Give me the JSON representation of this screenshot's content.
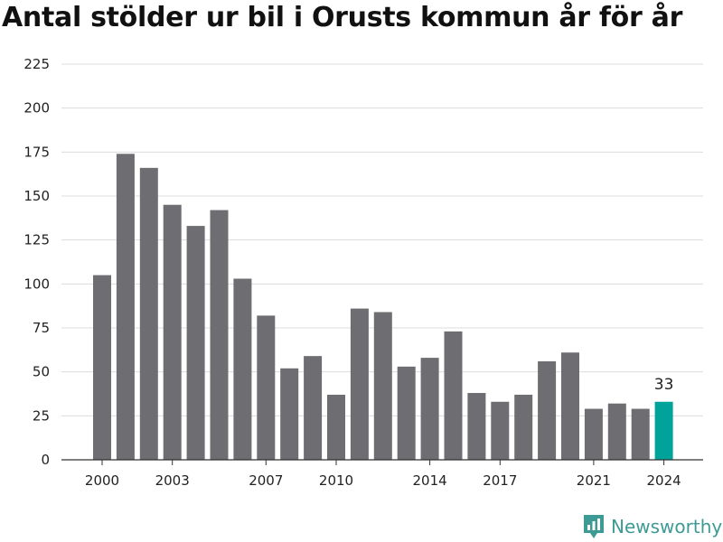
{
  "title": "Antal stölder ur bil i Orusts kommun år för år",
  "brand": {
    "name": "Newsworthy",
    "icon": "newsworthy-logo-icon",
    "color": "#3d9a95"
  },
  "chart_data": {
    "type": "bar",
    "title": "Antal stölder ur bil i Orusts kommun år för år",
    "xlabel": "",
    "ylabel": "",
    "ylim": [
      0,
      225
    ],
    "yticks": [
      0,
      25,
      50,
      75,
      100,
      125,
      150,
      175,
      200,
      225
    ],
    "x_tick_labels": [
      "2000",
      "2003",
      "2007",
      "2010",
      "2014",
      "2017",
      "2021",
      "2024"
    ],
    "grid": true,
    "colors": {
      "default": "#6e6d72",
      "highlight": "#00a39a"
    },
    "highlight_year": 2024,
    "highlight_label": "33",
    "categories": [
      2000,
      2001,
      2002,
      2003,
      2004,
      2005,
      2006,
      2007,
      2008,
      2009,
      2010,
      2011,
      2012,
      2013,
      2014,
      2015,
      2016,
      2017,
      2018,
      2019,
      2020,
      2021,
      2022,
      2023,
      2024
    ],
    "values": [
      105,
      174,
      166,
      145,
      133,
      142,
      103,
      82,
      52,
      59,
      37,
      86,
      84,
      53,
      58,
      73,
      38,
      33,
      37,
      56,
      61,
      29,
      32,
      29,
      33
    ]
  }
}
